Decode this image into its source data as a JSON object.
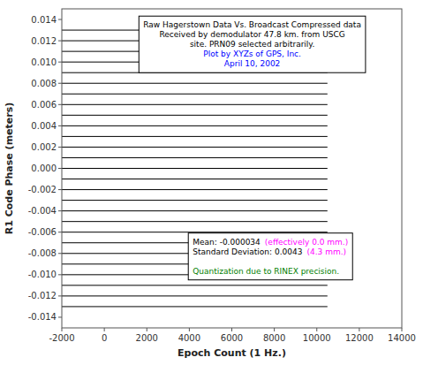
{
  "chart_data": {
    "type": "line",
    "title": "Raw Hagerstown Data Vs. Broadcast Compressed data",
    "subtitle": [
      "Received by demodulator 47.8 km. from USCG",
      "site.  PRN09 selected arbitrarily."
    ],
    "annotations": [
      {
        "text": "Plot by XYZs of GPS, Inc.",
        "color": "#0000FF"
      },
      {
        "text": "April 10, 2002",
        "color": "#0000FF"
      },
      {
        "text": "Mean: -0.000034",
        "color": "#000000"
      },
      {
        "text": "(effectively 0.0 mm.)",
        "color": "#FF00FF"
      },
      {
        "text": "Standard Deviation: 0.0043",
        "color": "#000000"
      },
      {
        "text": "(4.3 mm.)",
        "color": "#FF00FF"
      },
      {
        "text": "Quantization due to RINEX precision.",
        "color": "#008000"
      }
    ],
    "x_label": "Epoch Count (1 Hz.)",
    "y_label": "R1 Code Phase (meters)",
    "x": [
      -2000,
      10500
    ],
    "series": [
      {
        "values": [
          -0.013,
          -0.013
        ],
        "color": "#000000"
      },
      {
        "values": [
          -0.012,
          -0.012
        ],
        "color": "#000000"
      },
      {
        "values": [
          -0.011,
          -0.011
        ],
        "color": "#000000"
      },
      {
        "values": [
          -0.01,
          -0.01
        ],
        "color": "#000000"
      },
      {
        "values": [
          -0.009,
          -0.009
        ],
        "color": "#000000"
      },
      {
        "values": [
          -0.008,
          -0.008
        ],
        "color": "#000000"
      },
      {
        "values": [
          -0.007,
          -0.007
        ],
        "color": "#000000"
      },
      {
        "values": [
          -0.006,
          -0.006
        ],
        "color": "#000000"
      },
      {
        "values": [
          -0.005,
          -0.005
        ],
        "color": "#000000"
      },
      {
        "values": [
          -0.004,
          -0.004
        ],
        "color": "#000000"
      },
      {
        "values": [
          -0.003,
          -0.003
        ],
        "color": "#000000"
      },
      {
        "values": [
          -0.002,
          -0.002
        ],
        "color": "#000000"
      },
      {
        "values": [
          -0.001,
          -0.001
        ],
        "color": "#000000"
      },
      {
        "values": [
          0.0,
          0.0
        ],
        "color": "#000000"
      },
      {
        "values": [
          0.001,
          0.001
        ],
        "color": "#000000"
      },
      {
        "values": [
          0.002,
          0.002
        ],
        "color": "#000000"
      },
      {
        "values": [
          0.003,
          0.003
        ],
        "color": "#000000"
      },
      {
        "values": [
          0.004,
          0.004
        ],
        "color": "#000000"
      },
      {
        "values": [
          0.005,
          0.005
        ],
        "color": "#000000"
      },
      {
        "values": [
          0.006,
          0.006
        ],
        "color": "#000000"
      },
      {
        "values": [
          0.007,
          0.007
        ],
        "color": "#000000"
      },
      {
        "values": [
          0.008,
          0.008
        ],
        "color": "#000000"
      },
      {
        "values": [
          0.009,
          0.009
        ],
        "color": "#000000"
      },
      {
        "values": [
          0.01,
          0.01
        ],
        "color": "#000000"
      },
      {
        "values": [
          0.011,
          0.011
        ],
        "color": "#000000"
      },
      {
        "values": [
          0.012,
          0.012
        ],
        "color": "#000000"
      },
      {
        "values": [
          0.013,
          0.013
        ],
        "color": "#000000"
      }
    ],
    "xlim": [
      -2000,
      14000
    ],
    "ylim": [
      -0.015,
      0.015
    ],
    "xticks": [
      -2000,
      0,
      2000,
      4000,
      6000,
      8000,
      10000,
      12000,
      14000
    ],
    "yticks": [
      {
        "value": -0.014,
        "label": "-0.014"
      },
      {
        "value": -0.012,
        "label": "-0.012"
      },
      {
        "value": -0.01,
        "label": "-0.010"
      },
      {
        "value": -0.008,
        "label": "-0.008"
      },
      {
        "value": -0.006,
        "label": "-0.006"
      },
      {
        "value": -0.004,
        "label": "-0.004"
      },
      {
        "value": -0.002,
        "label": "-0.002"
      },
      {
        "value": 0.0,
        "label": "0.000"
      },
      {
        "value": 0.002,
        "label": "0.002"
      },
      {
        "value": 0.004,
        "label": "0.004"
      },
      {
        "value": 0.006,
        "label": "0.006"
      },
      {
        "value": 0.008,
        "label": "0.008"
      },
      {
        "value": 0.01,
        "label": "0.010"
      },
      {
        "value": 0.012,
        "label": "0.012"
      },
      {
        "value": 0.014,
        "label": "0.014"
      }
    ],
    "grid": false
  }
}
